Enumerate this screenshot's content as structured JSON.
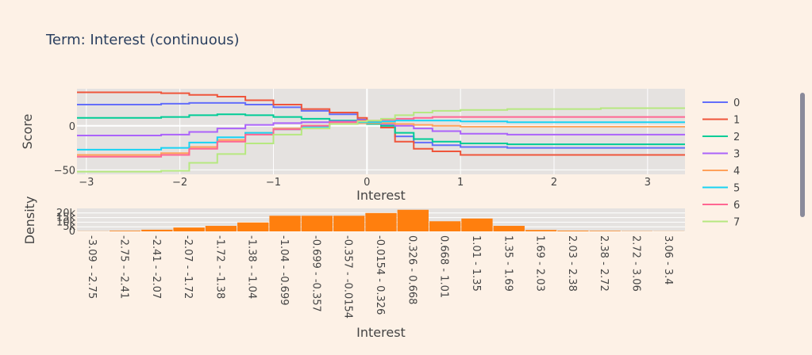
{
  "title": "Term: Interest (continuous)",
  "colors": {
    "background": "#fdf1e6",
    "plot_bg": "#e5e2e0",
    "grid": "#ffffff",
    "histogram": "#ff7f0e",
    "series": [
      "#636efa",
      "#ef553b",
      "#00cc96",
      "#ab63fa",
      "#ffa15a",
      "#19d3f3",
      "#ff6692",
      "#b6e880"
    ]
  },
  "chart_data": [
    {
      "type": "line",
      "xlabel": "Interest",
      "ylabel": "Score",
      "xlim": [
        -3.1,
        3.4
      ],
      "ylim": [
        -55,
        42
      ],
      "xticks": [
        -3,
        -2,
        -1,
        0,
        1,
        2,
        3
      ],
      "xtick_labels": [
        "−3",
        "−2",
        "−1",
        "0",
        "1",
        "2",
        "3"
      ],
      "yticks": [
        -50,
        0
      ],
      "ytick_labels": [
        "−50",
        "0"
      ],
      "grid": true,
      "legend": "right",
      "x": [
        -3.1,
        -2.8,
        -2.5,
        -2.2,
        -1.9,
        -1.6,
        -1.3,
        -1.0,
        -0.7,
        -0.4,
        -0.1,
        0,
        0.15,
        0.3,
        0.5,
        0.7,
        1.0,
        1.5,
        2.0,
        2.5,
        3.0,
        3.4
      ],
      "series": [
        {
          "name": "0",
          "values": [
            24,
            24,
            24,
            25,
            26,
            26,
            24,
            21,
            17,
            13,
            7,
            4,
            0,
            -12,
            -19,
            -22,
            -24,
            -25,
            -25,
            -25,
            -25,
            -25
          ]
        },
        {
          "name": "1",
          "values": [
            38,
            38,
            38,
            37,
            35,
            33,
            29,
            24,
            19,
            15,
            9,
            5,
            -2,
            -18,
            -26,
            -29,
            -33,
            -33,
            -33,
            -33,
            -33,
            -33
          ]
        },
        {
          "name": "2",
          "values": [
            9,
            9,
            9,
            10,
            12,
            13,
            12,
            10,
            8,
            6,
            4,
            2,
            0,
            -8,
            -15,
            -18,
            -20,
            -21,
            -21,
            -21,
            -21,
            -21
          ]
        },
        {
          "name": "3",
          "values": [
            -11,
            -11,
            -11,
            -10,
            -7,
            -3,
            1,
            3,
            4,
            5,
            4,
            3,
            2,
            0,
            -3,
            -6,
            -9,
            -10,
            -10,
            -10,
            -10,
            -10
          ]
        },
        {
          "name": "4",
          "values": [
            -33,
            -33,
            -33,
            -31,
            -24,
            -16,
            -8,
            -3,
            0,
            2,
            3,
            3,
            3,
            2,
            1,
            0,
            -1,
            -1,
            -1,
            -1,
            -1,
            -1
          ]
        },
        {
          "name": "5",
          "values": [
            -27,
            -27,
            -27,
            -25,
            -19,
            -13,
            -8,
            -4,
            -1,
            2,
            4,
            4,
            5,
            6,
            6,
            6,
            5,
            4,
            4,
            4,
            4,
            4
          ]
        },
        {
          "name": "6",
          "values": [
            -35,
            -35,
            -35,
            -33,
            -26,
            -18,
            -10,
            -4,
            0,
            4,
            6,
            6,
            7,
            8,
            9,
            10,
            10,
            10,
            10,
            10,
            10,
            10
          ]
        },
        {
          "name": "7",
          "values": [
            -52,
            -52,
            -52,
            -51,
            -42,
            -32,
            -20,
            -10,
            -3,
            2,
            5,
            6,
            8,
            12,
            15,
            17,
            18,
            19,
            19,
            20,
            20,
            20
          ]
        }
      ]
    },
    {
      "type": "bar",
      "xlabel": "Interest",
      "ylabel": "Density",
      "ylim": [
        0,
        25000
      ],
      "yticks": [
        0,
        5000,
        10000,
        15000,
        20000
      ],
      "ytick_labels": [
        "0",
        "5k",
        "10k",
        "15k",
        "20k"
      ],
      "categories": [
        "-3.09 - -2.75",
        "-2.75 - -2.41",
        "-2.41 - -2.07",
        "-2.07 - -1.72",
        "-1.72 - -1.38",
        "-1.38 - -1.04",
        "-1.04 - -0.699",
        "-0.699 - -0.357",
        "-0.357 - -0.0154",
        "-0.0154 - 0.326",
        "0.326 - 0.668",
        "0.668 - 1.01",
        "1.01 - 1.35",
        "1.35 - 1.69",
        "1.69 - 2.03",
        "2.03 - 2.38",
        "2.38 - 2.72",
        "2.72 - 3.06",
        "3.06 - 3.4"
      ],
      "values": [
        200,
        700,
        1800,
        4200,
        6000,
        9700,
        17000,
        17000,
        17000,
        20000,
        23500,
        11000,
        14000,
        6000,
        1500,
        800,
        600,
        300,
        200
      ]
    }
  ]
}
